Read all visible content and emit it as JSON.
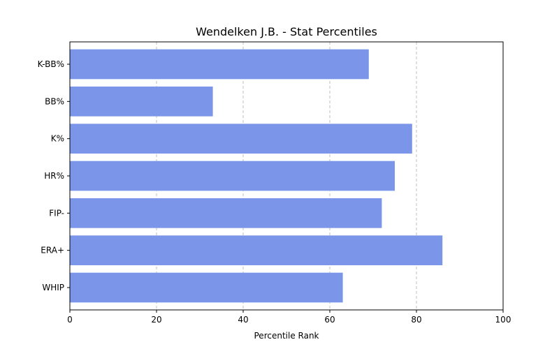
{
  "chart_data": {
    "type": "bar",
    "orientation": "horizontal",
    "title": "Wendelken J.B. - Stat Percentiles",
    "xlabel": "Percentile Rank",
    "ylabel": "",
    "categories": [
      "K-BB%",
      "BB%",
      "K%",
      "HR%",
      "FIP-",
      "ERA+",
      "WHIP"
    ],
    "values": [
      69,
      33,
      79,
      75,
      72,
      86,
      63
    ],
    "xlim": [
      0,
      100
    ],
    "xticks": [
      0,
      20,
      40,
      60,
      80,
      100
    ],
    "grid": "x-dashed",
    "bar_color": "#7b96e8"
  }
}
